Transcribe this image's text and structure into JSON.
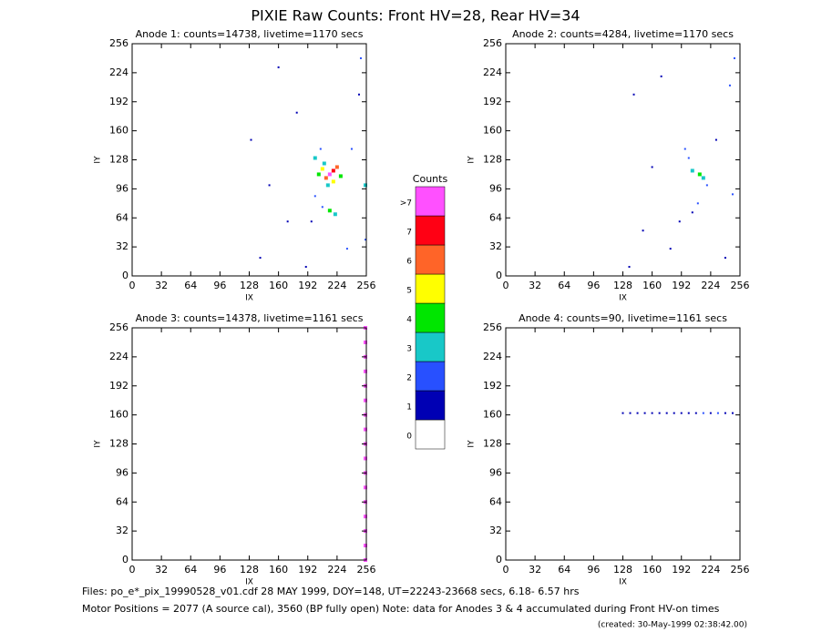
{
  "title": "PIXIE Raw Counts:  Front HV=28, Rear HV=34",
  "chart_data": [
    {
      "type": "scatter",
      "title": "Anode 1: counts=14738, livetime=1170 secs",
      "x_label": "IX",
      "y_label": "IY",
      "xlim": [
        0,
        256
      ],
      "ylim": [
        0,
        256
      ],
      "xticks": [
        0,
        32,
        64,
        96,
        128,
        160,
        192,
        224,
        256
      ],
      "yticks": [
        0,
        32,
        64,
        96,
        128,
        160,
        192,
        224,
        256
      ],
      "x": [
        216,
        220,
        212,
        224,
        208,
        220,
        204,
        228,
        210,
        200,
        206,
        214,
        216,
        222,
        208,
        200,
        196,
        240,
        248,
        250,
        140,
        160,
        180,
        150,
        170,
        190,
        235,
        130,
        255,
        255
      ],
      "y": [
        112,
        116,
        108,
        120,
        118,
        104,
        112,
        110,
        124,
        130,
        140,
        100,
        72,
        68,
        76,
        88,
        60,
        140,
        200,
        240,
        20,
        230,
        180,
        100,
        60,
        10,
        30,
        150,
        100,
        40
      ],
      "values": [
        8,
        7,
        6,
        6,
        5,
        5,
        4,
        4,
        3,
        3,
        2,
        3,
        4,
        3,
        2,
        2,
        1,
        2,
        1,
        2,
        1,
        1,
        1,
        1,
        1,
        1,
        2,
        1,
        3,
        2
      ]
    },
    {
      "type": "scatter",
      "title": "Anode 2: counts=4284, livetime=1170 secs",
      "x_label": "IX",
      "y_label": "IY",
      "xlim": [
        0,
        256
      ],
      "ylim": [
        0,
        256
      ],
      "xticks": [
        0,
        32,
        64,
        96,
        128,
        160,
        192,
        224,
        256
      ],
      "yticks": [
        0,
        32,
        64,
        96,
        128,
        160,
        192,
        224,
        256
      ],
      "x": [
        212,
        216,
        204,
        200,
        196,
        220,
        210,
        204,
        190,
        230,
        245,
        250,
        140,
        160,
        180,
        150,
        240,
        170,
        248,
        135
      ],
      "y": [
        112,
        108,
        116,
        130,
        140,
        100,
        80,
        70,
        60,
        150,
        210,
        240,
        200,
        120,
        30,
        50,
        20,
        220,
        90,
        10
      ],
      "values": [
        4,
        3,
        3,
        2,
        2,
        2,
        2,
        1,
        1,
        1,
        2,
        2,
        1,
        1,
        1,
        1,
        1,
        1,
        2,
        1
      ]
    },
    {
      "type": "scatter",
      "title": "Anode 3: counts=14378, livetime=1161 secs",
      "x_label": "IX",
      "y_label": "IY",
      "xlim": [
        0,
        256
      ],
      "ylim": [
        0,
        256
      ],
      "xticks": [
        0,
        32,
        64,
        96,
        128,
        160,
        192,
        224,
        256
      ],
      "yticks": [
        0,
        32,
        64,
        96,
        128,
        160,
        192,
        224,
        256
      ],
      "x": [
        255,
        255,
        255,
        255,
        255,
        255,
        255,
        255,
        255,
        255,
        255,
        255,
        255,
        255,
        255,
        255,
        255
      ],
      "y": [
        0,
        16,
        32,
        48,
        64,
        80,
        96,
        112,
        128,
        144,
        160,
        176,
        192,
        208,
        224,
        240,
        256
      ],
      "values": [
        8,
        8,
        8,
        8,
        8,
        8,
        8,
        8,
        8,
        8,
        8,
        8,
        8,
        8,
        8,
        8,
        8
      ]
    },
    {
      "type": "scatter",
      "title": "Anode 4: counts=90, livetime=1161 secs",
      "x_label": "IX",
      "y_label": "IY",
      "xlim": [
        0,
        256
      ],
      "ylim": [
        0,
        256
      ],
      "xticks": [
        0,
        32,
        64,
        96,
        128,
        160,
        192,
        224,
        256
      ],
      "yticks": [
        0,
        32,
        64,
        96,
        128,
        160,
        192,
        224,
        256
      ],
      "x": [
        128,
        136,
        144,
        152,
        160,
        168,
        176,
        184,
        192,
        200,
        208,
        216,
        224,
        232,
        240,
        248
      ],
      "y": [
        162,
        162,
        162,
        162,
        162,
        162,
        162,
        162,
        162,
        162,
        162,
        162,
        162,
        162,
        162,
        162
      ],
      "values": [
        1,
        1,
        1,
        1,
        1,
        1,
        1,
        1,
        1,
        1,
        1,
        2,
        1,
        2,
        1,
        1
      ]
    }
  ],
  "colorbar": {
    "title": "Counts",
    "labels": [
      "0",
      "1",
      "2",
      "3",
      "4",
      "5",
      "6",
      "7",
      ">7"
    ],
    "colors": [
      "#ffffff",
      "#0000b4",
      "#2850ff",
      "#18c8c8",
      "#00e600",
      "#ffff00",
      "#ff6428",
      "#ff0014",
      "#ff50ff"
    ]
  },
  "footer": [
    "Files: po_e*_pix_19990528_v01.cdf    28 MAY 1999, DOY=148, UT=22243-23668 secs,  6.18- 6.57 hrs",
    "Motor Positions = 2077 (A source cal), 3560 (BP fully open)    Note: data for Anodes 3 & 4 accumulated during Front HV-on times",
    "(created: 30-May-1999 02:38:42.00)"
  ]
}
